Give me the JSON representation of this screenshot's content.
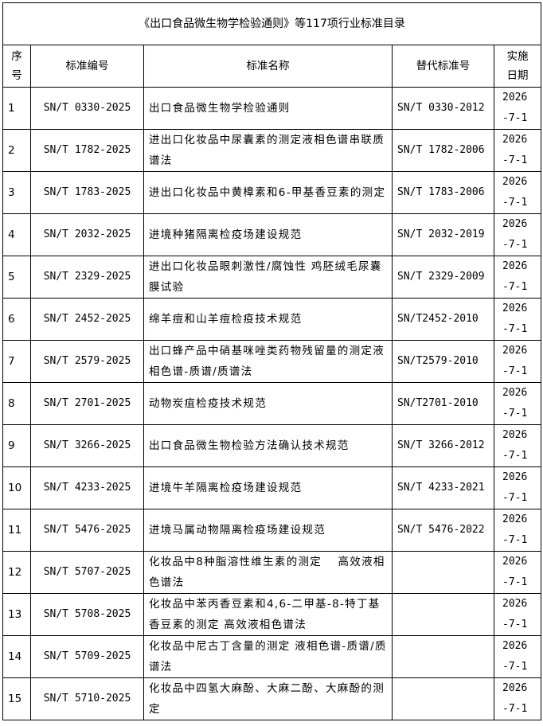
{
  "title": "《出口食品微生物学检验通则》等117项行业标准目录",
  "headers": {
    "no": "序号",
    "code": "标准编号",
    "name": "标准名称",
    "replaces": "替代标准号",
    "date": "实施日期"
  },
  "rows": [
    {
      "no": "1",
      "code": "SN/T 0330-2025",
      "name": "出口食品微生物学检验通则",
      "replaces": "SN/T 0330-2012",
      "date": "2026-7-1"
    },
    {
      "no": "2",
      "code": "SN/T 1782-2025",
      "name": "进出口化妆品中尿囊素的测定液相色谱串联质谱法",
      "replaces": "SN/T 1782-2006",
      "date": "2026-7-1"
    },
    {
      "no": "3",
      "code": "SN/T 1783-2025",
      "name": "进出口化妆品中黄樟素和6-甲基香豆素的测定",
      "replaces": "SN/T 1783-2006",
      "date": "2026-7-1"
    },
    {
      "no": "4",
      "code": "SN/T 2032-2025",
      "name": "进境种猪隔离检疫场建设规范",
      "replaces": "SN/T 2032-2019",
      "date": "2026-7-1"
    },
    {
      "no": "5",
      "code": "SN/T 2329-2025",
      "name": "进出口化妆品眼刺激性/腐蚀性 鸡胚绒毛尿囊膜试验",
      "replaces": "SN/T 2329-2009",
      "date": "2026-7-1"
    },
    {
      "no": "6",
      "code": "SN/T 2452-2025",
      "name": "绵羊痘和山羊痘检疫技术规范",
      "replaces": "SN/T2452-2010",
      "date": "2026-7-1"
    },
    {
      "no": "7",
      "code": "SN/T 2579-2025",
      "name": "出口蜂产品中硝基咪唑类药物残留量的测定液相色谱-质谱/质谱法",
      "replaces": "SN/T2579-2010",
      "date": "2026-7-1"
    },
    {
      "no": "8",
      "code": "SN/T 2701-2025",
      "name": "动物炭疽检疫技术规范",
      "replaces": "SN/T2701-2010",
      "date": "2026-7-1"
    },
    {
      "no": "9",
      "code": "SN/T 3266-2025",
      "name": "出口食品微生物检验方法确认技术规范",
      "replaces": "SN/T 3266-2012",
      "date": "2026-7-1"
    },
    {
      "no": "10",
      "code": "SN/T 4233-2025",
      "name": "进境牛羊隔离检疫场建设规范",
      "replaces": "SN/T 4233-2021",
      "date": "2026-7-1"
    },
    {
      "no": "11",
      "code": "SN/T 5476-2025",
      "name": "进境马属动物隔离检疫场建设规范",
      "replaces": "SN/T 5476-2022",
      "date": "2026-7-1"
    },
    {
      "no": "12",
      "code": "SN/T 5707-2025",
      "name": "化妆品中8种脂溶性维生素的测定　 高效液相色谱法",
      "replaces": "",
      "date": "2026-7-1"
    },
    {
      "no": "13",
      "code": "SN/T 5708-2025",
      "name": "化妆品中苯丙香豆素和4,6-二甲基-8-特丁基香豆素的测定 高效液相色谱法",
      "replaces": "",
      "date": "2026-7-1"
    },
    {
      "no": "14",
      "code": "SN/T 5709-2025",
      "name": "化妆品中尼古丁含量的测定 液相色谱-质谱/质谱法",
      "replaces": "",
      "date": "2026-7-1"
    },
    {
      "no": "15",
      "code": "SN/T 5710-2025",
      "name": "化妆品中四氢大麻酚、大麻二酚、大麻酚的测定",
      "replaces": "",
      "date": "2026-7-1"
    }
  ]
}
